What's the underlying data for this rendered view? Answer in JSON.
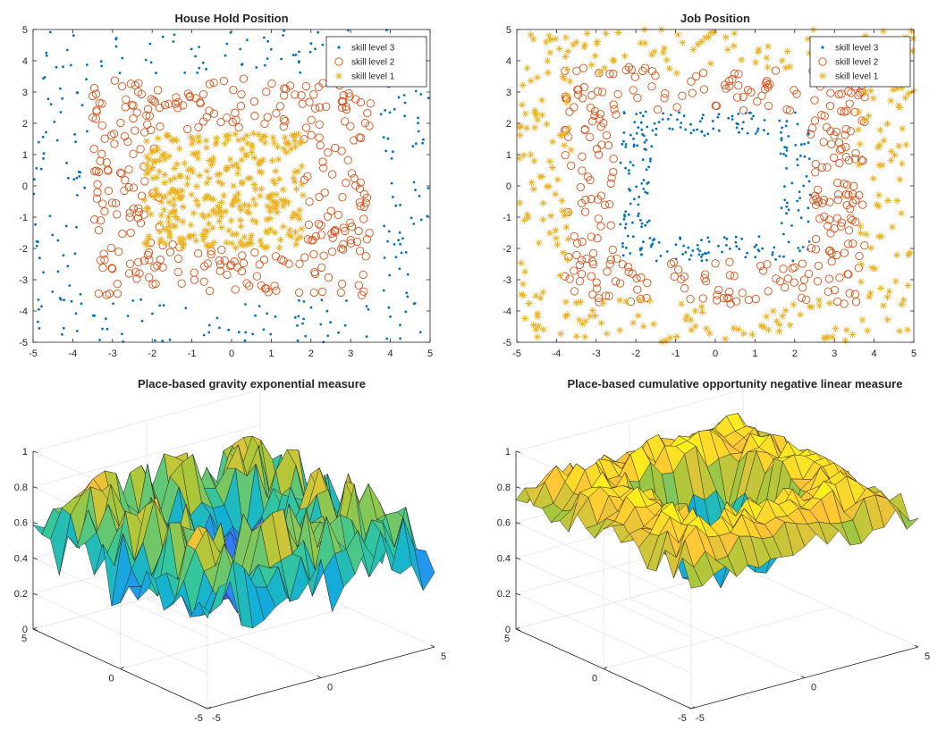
{
  "colors": {
    "skill_level_3": "#0072BD",
    "skill_level_2": "#D95319",
    "skill_level_1": "#EDB120",
    "axis": "#262626",
    "grid": "#E5E5E5"
  },
  "chart_data": [
    {
      "type": "scatter",
      "title": "House Hold Position",
      "xlim": [
        -5,
        5
      ],
      "ylim": [
        -5,
        5
      ],
      "xticks": [
        "-5",
        "-4",
        "-3",
        "-2",
        "-1",
        "0",
        "1",
        "2",
        "3",
        "4",
        "5"
      ],
      "yticks": [
        "5",
        "4",
        "3",
        "2",
        "1",
        "0",
        "-1",
        "-2",
        "-3",
        "-4",
        "-5"
      ],
      "grid": false,
      "legend": "top-right",
      "series": [
        {
          "name": "skill level 3",
          "marker": "dot",
          "color": "#0072BD",
          "region": {
            "shape": "outside-square",
            "half_width": 3.6
          },
          "count": 260
        },
        {
          "name": "skill level 2",
          "marker": "circle",
          "color": "#D95319",
          "region": {
            "shape": "square-ring",
            "inner": 1.8,
            "outer": 3.5
          },
          "count": 330
        },
        {
          "name": "skill level 1",
          "marker": "asterisk",
          "color": "#EDB120",
          "region": {
            "shape": "square",
            "x": [
              -2.2,
              1.8
            ],
            "y": [
              -2.0,
              1.7
            ]
          },
          "count": 330
        }
      ]
    },
    {
      "type": "scatter",
      "title": "Job Position",
      "xlim": [
        -5,
        5
      ],
      "ylim": [
        -5,
        5
      ],
      "xticks": [
        "-5",
        "-4",
        "-3",
        "-2",
        "-1",
        "0",
        "1",
        "2",
        "3",
        "4",
        "5"
      ],
      "yticks": [
        "5",
        "4",
        "3",
        "2",
        "1",
        "0",
        "-1",
        "-2",
        "-3",
        "-4",
        "-5"
      ],
      "grid": false,
      "legend": "top-right",
      "series": [
        {
          "name": "skill level 3",
          "marker": "dot",
          "color": "#0072BD",
          "region": {
            "shape": "square-ring",
            "inner": 1.6,
            "outer": 2.4
          },
          "count": 260
        },
        {
          "name": "skill level 2",
          "marker": "circle",
          "color": "#D95319",
          "region": {
            "shape": "square-ring",
            "inner": 2.4,
            "outer": 3.8
          },
          "count": 330
        },
        {
          "name": "skill level 1",
          "marker": "asterisk",
          "color": "#EDB120",
          "region": {
            "shape": "outside-square",
            "half_width": 3.6
          },
          "count": 320
        }
      ]
    },
    {
      "type": "surface",
      "title": "Place-based gravity exponential measure",
      "xlim": [
        -5,
        5
      ],
      "ylim": [
        -5,
        5
      ],
      "zlim": [
        0,
        1
      ],
      "zticks": [
        "0",
        "0.2",
        "0.4",
        "0.6",
        "0.8",
        "1"
      ],
      "yticks": [
        "-5",
        "0",
        "5"
      ],
      "xticks": [
        "-5",
        "0",
        "5"
      ],
      "grid": true,
      "colormap": "parula",
      "surface": {
        "center_value": 0.38,
        "ring_value": 0.72,
        "edge_value": 0.5,
        "noise": 0.18
      }
    },
    {
      "type": "surface",
      "title": "Place-based cumulative opportunity negative linear measure",
      "xlim": [
        -5,
        5
      ],
      "ylim": [
        -5,
        5
      ],
      "zlim": [
        0,
        1
      ],
      "zticks": [
        "0",
        "0.2",
        "0.4",
        "0.6",
        "0.8",
        "1"
      ],
      "yticks": [
        "-5",
        "0",
        "5"
      ],
      "xticks": [
        "-5",
        "0",
        "5"
      ],
      "grid": true,
      "colormap": "parula",
      "surface": {
        "center_value": 0.45,
        "ring_value": 0.9,
        "edge_value": 0.75,
        "noise": 0.08
      }
    }
  ]
}
